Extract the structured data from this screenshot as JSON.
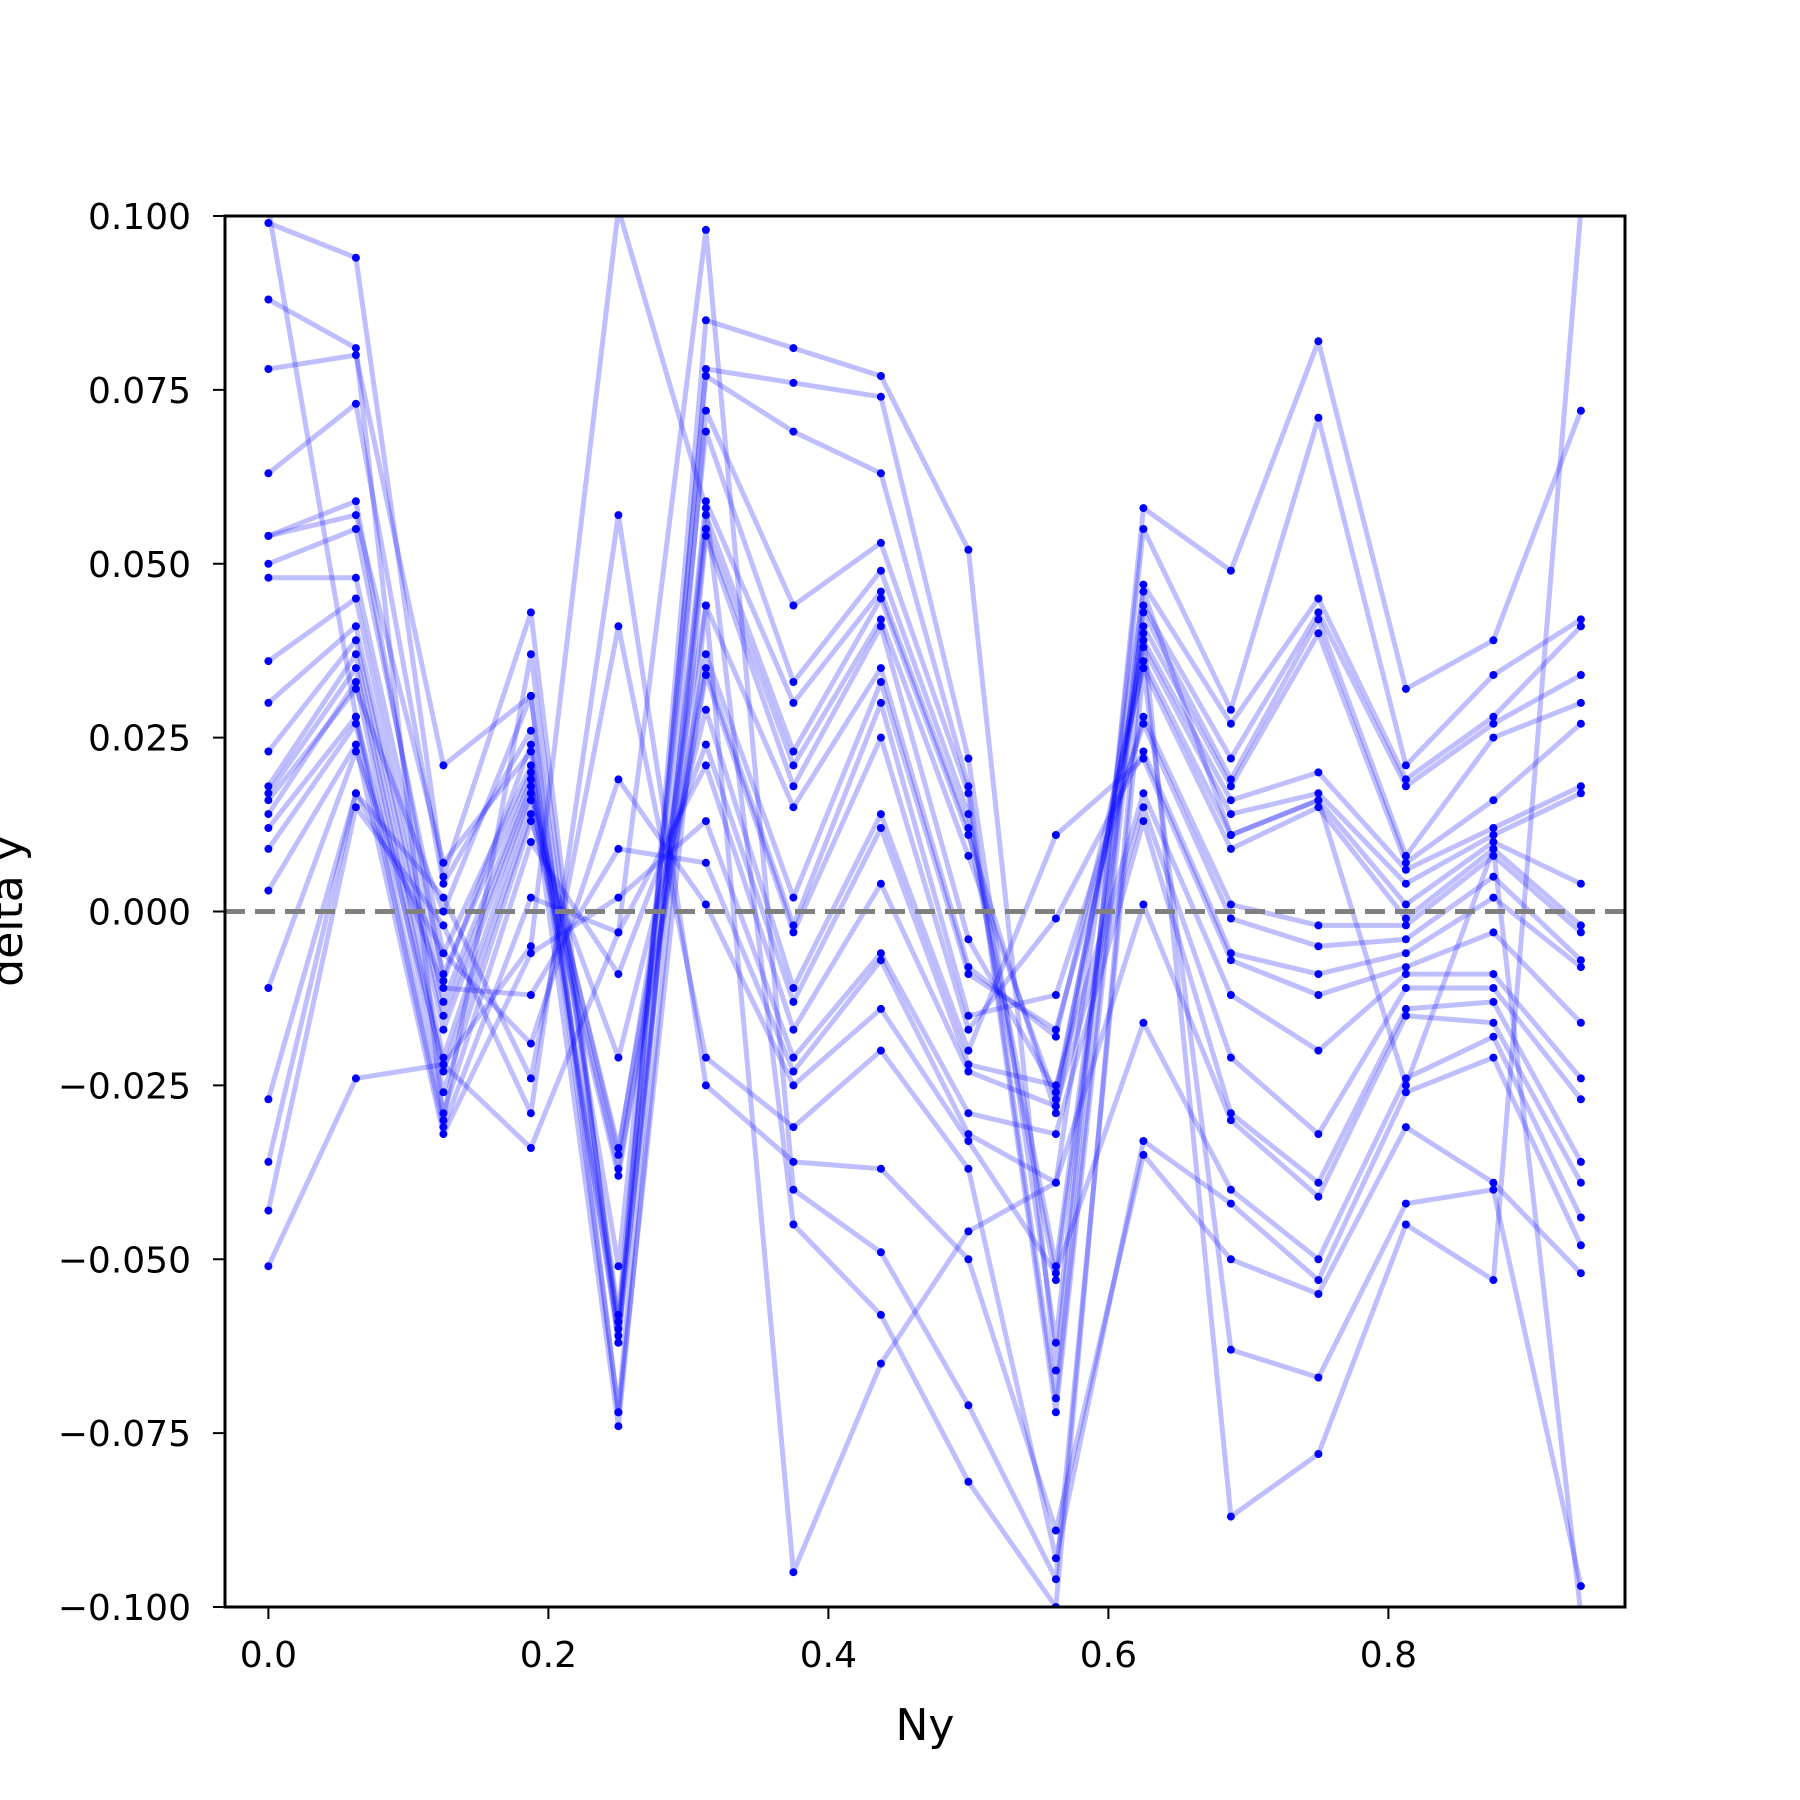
{
  "chart_data": {
    "type": "line",
    "title": "",
    "xlabel": "Ny",
    "ylabel": "delta y",
    "xlim": [
      -0.031,
      0.969
    ],
    "ylim": [
      -0.1,
      0.1
    ],
    "xticks": [
      "0.0",
      "0.2",
      "0.4",
      "0.6",
      "0.8"
    ],
    "xtick_values": [
      0.0,
      0.2,
      0.4,
      0.6,
      0.8
    ],
    "yticks": [
      "0.100",
      "0.075",
      "0.050",
      "0.025",
      "0.000",
      "−0.025",
      "−0.050",
      "−0.075",
      "−0.100"
    ],
    "ytick_values": [
      0.1,
      0.075,
      0.05,
      0.025,
      0.0,
      -0.025,
      -0.05,
      -0.075,
      -0.1
    ],
    "reference_line": {
      "y": 0.0,
      "style": "dashed",
      "color": "#808080"
    },
    "series_color": "#0000ff",
    "line_alpha": 0.25,
    "grid": false,
    "legend": "none",
    "x": [
      0.0,
      0.0625,
      0.125,
      0.1875,
      0.25,
      0.3125,
      0.375,
      0.4375,
      0.5,
      0.5625,
      0.625,
      0.6875,
      0.75,
      0.8125,
      0.875,
      0.9375
    ],
    "series": [
      {
        "values": [
          0.099,
          0.094,
          0.005,
          0.043,
          -0.062,
          0.085,
          0.081,
          0.077,
          0.052,
          -0.066,
          0.058,
          0.049,
          0.082,
          0.032,
          0.039,
          0.072
        ]
      },
      {
        "values": [
          0.088,
          0.081,
          -0.03,
          0.037,
          -0.06,
          0.078,
          0.076,
          0.074,
          0.022,
          -0.062,
          0.055,
          0.029,
          0.071,
          0.021,
          0.034,
          0.042
        ]
      },
      {
        "values": [
          0.078,
          0.08,
          0.021,
          0.031,
          -0.058,
          0.077,
          0.069,
          0.063,
          0.018,
          -0.07,
          0.047,
          0.027,
          0.045,
          0.019,
          0.028,
          0.041
        ]
      },
      {
        "values": [
          0.063,
          0.073,
          0.004,
          0.026,
          -0.072,
          0.072,
          0.044,
          0.053,
          0.017,
          -0.072,
          0.044,
          0.022,
          0.043,
          0.018,
          0.027,
          0.034
        ]
      },
      {
        "values": [
          0.054,
          0.059,
          -0.01,
          0.024,
          -0.051,
          0.069,
          0.033,
          0.049,
          0.014,
          -0.051,
          0.043,
          0.019,
          0.042,
          0.008,
          0.025,
          0.03
        ]
      },
      {
        "values": [
          0.054,
          0.057,
          0.007,
          0.023,
          -0.062,
          0.059,
          0.03,
          0.046,
          0.012,
          -0.053,
          0.041,
          0.018,
          0.04,
          0.007,
          0.016,
          0.027
        ]
      },
      {
        "values": [
          0.05,
          0.055,
          -0.006,
          0.021,
          -0.059,
          0.057,
          0.023,
          0.045,
          0.011,
          -0.029,
          0.039,
          0.016,
          0.02,
          0.006,
          0.012,
          0.018
        ]
      },
      {
        "values": [
          0.048,
          0.048,
          -0.009,
          0.02,
          -0.061,
          0.055,
          0.021,
          0.042,
          0.008,
          -0.027,
          0.038,
          0.014,
          0.017,
          0.004,
          0.011,
          0.017
        ]
      },
      {
        "values": [
          0.036,
          0.045,
          -0.013,
          0.019,
          -0.074,
          0.054,
          0.018,
          0.041,
          -0.004,
          -0.026,
          0.036,
          0.011,
          0.016,
          0.001,
          0.01,
          0.004
        ]
      },
      {
        "values": [
          0.03,
          0.041,
          -0.015,
          0.018,
          -0.035,
          0.044,
          0.015,
          0.035,
          -0.008,
          -0.018,
          0.035,
          0.009,
          0.015,
          -0.001,
          0.009,
          -0.002
        ]
      },
      {
        "values": [
          0.023,
          0.039,
          -0.017,
          0.017,
          -0.034,
          0.037,
          0.002,
          0.033,
          -0.009,
          -0.017,
          0.028,
          0.001,
          -0.002,
          -0.002,
          0.008,
          -0.003
        ]
      },
      {
        "values": [
          0.018,
          0.037,
          -0.021,
          0.016,
          -0.037,
          0.035,
          -0.002,
          0.03,
          -0.015,
          -0.012,
          0.027,
          -0.001,
          -0.005,
          -0.004,
          0.005,
          -0.007
        ]
      },
      {
        "values": [
          0.017,
          0.035,
          -0.023,
          0.014,
          -0.038,
          0.034,
          -0.003,
          0.025,
          -0.017,
          -0.001,
          0.023,
          -0.006,
          -0.009,
          -0.006,
          0.002,
          -0.008
        ]
      },
      {
        "values": [
          0.014,
          0.033,
          -0.026,
          0.013,
          -0.021,
          0.029,
          -0.011,
          0.014,
          -0.02,
          0.011,
          0.022,
          -0.007,
          -0.012,
          -0.008,
          -0.003,
          -0.016
        ]
      },
      {
        "values": [
          0.012,
          0.028,
          -0.029,
          0.01,
          -0.009,
          0.024,
          -0.013,
          0.012,
          -0.022,
          -0.025,
          0.017,
          -0.012,
          -0.02,
          -0.009,
          -0.009,
          -0.024
        ]
      },
      {
        "values": [
          0.009,
          0.027,
          -0.031,
          0.002,
          -0.003,
          0.021,
          -0.017,
          0.004,
          -0.023,
          -0.028,
          0.015,
          -0.021,
          -0.032,
          -0.011,
          -0.011,
          -0.027
        ]
      },
      {
        "values": [
          0.003,
          0.024,
          -0.032,
          -0.006,
          0.002,
          0.013,
          -0.021,
          -0.006,
          -0.029,
          -0.032,
          0.013,
          -0.029,
          -0.039,
          -0.014,
          -0.013,
          -0.036
        ]
      },
      {
        "values": [
          -0.011,
          0.023,
          -0.011,
          -0.012,
          0.009,
          0.007,
          -0.023,
          -0.007,
          -0.032,
          -0.039,
          0.001,
          -0.03,
          -0.041,
          -0.015,
          -0.016,
          -0.039
        ]
      },
      {
        "values": [
          -0.027,
          0.017,
          -0.006,
          -0.019,
          0.019,
          0.001,
          -0.025,
          -0.014,
          -0.033,
          -0.052,
          -0.016,
          -0.04,
          -0.05,
          -0.024,
          -0.018,
          -0.044
        ]
      },
      {
        "values": [
          -0.036,
          0.017,
          0.002,
          -0.024,
          0.041,
          -0.021,
          -0.031,
          -0.02,
          -0.037,
          -0.093,
          -0.033,
          -0.042,
          -0.053,
          -0.026,
          -0.021,
          -0.048
        ]
      },
      {
        "values": [
          -0.043,
          0.015,
          -0.002,
          -0.029,
          0.057,
          -0.025,
          -0.036,
          -0.037,
          -0.05,
          -0.089,
          -0.035,
          -0.05,
          -0.055,
          -0.031,
          -0.039,
          -0.052
        ]
      },
      {
        "values": [
          -0.051,
          -0.024,
          -0.022,
          -0.034,
          -0.003,
          0.098,
          -0.04,
          -0.049,
          -0.071,
          -0.096,
          0.035,
          -0.063,
          -0.067,
          -0.042,
          -0.04,
          -0.097
        ]
      },
      {
        "values": [
          0.101,
          0.028,
          -0.022,
          -0.005,
          0.101,
          0.058,
          -0.045,
          -0.058,
          -0.082,
          -0.1,
          0.04,
          -0.087,
          -0.078,
          -0.045,
          -0.053,
          0.101
        ]
      },
      {
        "values": [
          0.016,
          0.032,
          0.0,
          0.031,
          -0.072,
          0.044,
          -0.095,
          -0.065,
          -0.046,
          -0.039,
          0.046,
          0.011,
          0.016,
          -0.025,
          0.009,
          -0.101
        ]
      }
    ]
  }
}
